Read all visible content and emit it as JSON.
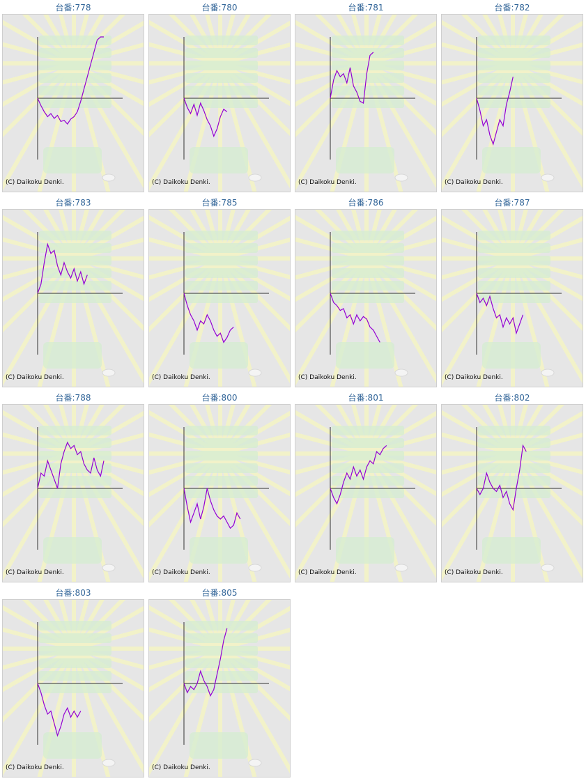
{
  "copyright": "(C) Daikoku Denki.",
  "colors": {
    "line": "#9400d3",
    "title": "#336699",
    "axis": "#333333",
    "panel_bg": "#e6e6e6"
  },
  "chart_data": [
    {
      "type": "line",
      "title": "台番:778",
      "xlim": [
        0,
        100
      ],
      "ylim": [
        -100,
        100
      ],
      "x": [
        0,
        5,
        10,
        15,
        20,
        25,
        30,
        35,
        40,
        45,
        50,
        55,
        60,
        65,
        70,
        75,
        80,
        85,
        90,
        95,
        100
      ],
      "values": [
        0,
        -12,
        -22,
        -30,
        -25,
        -33,
        -28,
        -38,
        -36,
        -42,
        -34,
        -30,
        -22,
        -5,
        15,
        35,
        55,
        75,
        95,
        100,
        100
      ]
    },
    {
      "type": "line",
      "title": "台番:780",
      "xlim": [
        0,
        100
      ],
      "ylim": [
        -100,
        100
      ],
      "x": [
        0,
        5,
        10,
        15,
        20,
        25,
        30,
        35,
        40,
        45,
        50,
        55,
        60,
        65,
        70,
        75,
        80,
        85,
        90,
        95,
        100
      ],
      "values": [
        0,
        -15,
        -25,
        -10,
        -28,
        -8,
        -20,
        -35,
        -45,
        -62,
        -50,
        -30,
        -18,
        -22,
        null,
        null,
        null,
        null,
        null,
        null,
        null
      ]
    },
    {
      "type": "line",
      "title": "台番:781",
      "xlim": [
        0,
        100
      ],
      "ylim": [
        -100,
        100
      ],
      "x": [
        0,
        5,
        10,
        15,
        20,
        25,
        30,
        35,
        40,
        45,
        50,
        55,
        60,
        65,
        70,
        75,
        80,
        85,
        90,
        95,
        100
      ],
      "values": [
        0,
        30,
        45,
        35,
        40,
        25,
        50,
        20,
        10,
        -5,
        -8,
        40,
        70,
        75,
        null,
        null,
        null,
        null,
        null,
        null,
        null
      ]
    },
    {
      "type": "line",
      "title": "台番:782",
      "xlim": [
        0,
        100
      ],
      "ylim": [
        -100,
        100
      ],
      "x": [
        0,
        5,
        10,
        15,
        20,
        25,
        30,
        35,
        40,
        45,
        50,
        55,
        60,
        65,
        70,
        75,
        80,
        85,
        90,
        95,
        100
      ],
      "values": [
        0,
        -20,
        -45,
        -35,
        -60,
        -75,
        -55,
        -35,
        -45,
        -10,
        10,
        35,
        null,
        null,
        null,
        null,
        null,
        null,
        null,
        null,
        null
      ]
    },
    {
      "type": "line",
      "title": "台番:783",
      "xlim": [
        0,
        100
      ],
      "ylim": [
        -100,
        100
      ],
      "x": [
        0,
        5,
        10,
        15,
        20,
        25,
        30,
        35,
        40,
        45,
        50,
        55,
        60,
        65,
        70,
        75,
        80,
        85,
        90,
        95,
        100
      ],
      "values": [
        0,
        15,
        50,
        80,
        65,
        70,
        45,
        30,
        50,
        35,
        25,
        40,
        20,
        35,
        15,
        30,
        null,
        null,
        null,
        null,
        null
      ]
    },
    {
      "type": "line",
      "title": "台番:785",
      "xlim": [
        0,
        100
      ],
      "ylim": [
        -100,
        100
      ],
      "x": [
        0,
        5,
        10,
        15,
        20,
        25,
        30,
        35,
        40,
        45,
        50,
        55,
        60,
        65,
        70,
        75,
        80,
        85,
        90,
        95,
        100
      ],
      "values": [
        0,
        -20,
        -35,
        -45,
        -60,
        -45,
        -50,
        -35,
        -45,
        -60,
        -70,
        -65,
        -80,
        -72,
        -60,
        -55,
        null,
        null,
        null,
        null,
        null
      ]
    },
    {
      "type": "line",
      "title": "台番:786",
      "xlim": [
        0,
        100
      ],
      "ylim": [
        -100,
        100
      ],
      "x": [
        0,
        5,
        10,
        15,
        20,
        25,
        30,
        35,
        40,
        45,
        50,
        55,
        60,
        65,
        70,
        75,
        80,
        85,
        90,
        95,
        100
      ],
      "values": [
        0,
        -15,
        -20,
        -28,
        -25,
        -40,
        -35,
        -50,
        -35,
        -45,
        -38,
        -42,
        -55,
        -60,
        -70,
        -80,
        null,
        null,
        null,
        null,
        null
      ]
    },
    {
      "type": "line",
      "title": "台番:787",
      "xlim": [
        0,
        100
      ],
      "ylim": [
        -100,
        100
      ],
      "x": [
        0,
        5,
        10,
        15,
        20,
        25,
        30,
        35,
        40,
        45,
        50,
        55,
        60,
        65,
        70,
        75,
        80,
        85,
        90,
        95,
        100
      ],
      "values": [
        0,
        -15,
        -8,
        -20,
        -5,
        -25,
        -40,
        -35,
        -55,
        -40,
        -50,
        -40,
        -65,
        -50,
        -35,
        null,
        null,
        null,
        null,
        null,
        null
      ]
    },
    {
      "type": "line",
      "title": "台番:788",
      "xlim": [
        0,
        100
      ],
      "ylim": [
        -100,
        100
      ],
      "x": [
        0,
        5,
        10,
        15,
        20,
        25,
        30,
        35,
        40,
        45,
        50,
        55,
        60,
        65,
        70,
        75,
        80,
        85,
        90,
        95,
        100
      ],
      "values": [
        0,
        25,
        20,
        45,
        30,
        15,
        0,
        40,
        60,
        75,
        65,
        70,
        55,
        60,
        40,
        30,
        25,
        50,
        30,
        20,
        45
      ]
    },
    {
      "type": "line",
      "title": "台番:800",
      "xlim": [
        0,
        100
      ],
      "ylim": [
        -100,
        100
      ],
      "x": [
        0,
        5,
        10,
        15,
        20,
        25,
        30,
        35,
        40,
        45,
        50,
        55,
        60,
        65,
        70,
        75,
        80,
        85,
        90,
        95,
        100
      ],
      "values": [
        0,
        -30,
        -55,
        -40,
        -25,
        -50,
        -30,
        0,
        -20,
        -35,
        -45,
        -50,
        -45,
        -55,
        -65,
        -60,
        -40,
        -50,
        null,
        null,
        null
      ]
    },
    {
      "type": "line",
      "title": "台番:801",
      "xlim": [
        0,
        100
      ],
      "ylim": [
        -100,
        100
      ],
      "x": [
        0,
        5,
        10,
        15,
        20,
        25,
        30,
        35,
        40,
        45,
        50,
        55,
        60,
        65,
        70,
        75,
        80,
        85,
        90,
        95,
        100
      ],
      "values": [
        0,
        -15,
        -25,
        -10,
        10,
        25,
        15,
        35,
        20,
        30,
        15,
        35,
        45,
        40,
        60,
        55,
        65,
        70,
        null,
        null,
        null
      ]
    },
    {
      "type": "line",
      "title": "台番:802",
      "xlim": [
        0,
        100
      ],
      "ylim": [
        -100,
        100
      ],
      "x": [
        0,
        5,
        10,
        15,
        20,
        25,
        30,
        35,
        40,
        45,
        50,
        55,
        60,
        65,
        70,
        75,
        80,
        85,
        90,
        95,
        100
      ],
      "values": [
        0,
        -10,
        0,
        25,
        10,
        0,
        -5,
        5,
        -15,
        -5,
        -25,
        -35,
        0,
        30,
        70,
        60,
        null,
        null,
        null,
        null,
        null
      ]
    },
    {
      "type": "line",
      "title": "台番:803",
      "xlim": [
        0,
        100
      ],
      "ylim": [
        -100,
        100
      ],
      "x": [
        0,
        5,
        10,
        15,
        20,
        25,
        30,
        35,
        40,
        45,
        50,
        55,
        60,
        65,
        70,
        75,
        80,
        85,
        90,
        95,
        100
      ],
      "values": [
        0,
        -15,
        -35,
        -50,
        -45,
        -65,
        -85,
        -70,
        -50,
        -40,
        -55,
        -45,
        -55,
        -45,
        null,
        null,
        null,
        null,
        null,
        null,
        null
      ]
    },
    {
      "type": "line",
      "title": "台番:805",
      "xlim": [
        0,
        100
      ],
      "ylim": [
        -100,
        100
      ],
      "x": [
        0,
        5,
        10,
        15,
        20,
        25,
        30,
        35,
        40,
        45,
        50,
        55,
        60,
        65,
        70,
        75,
        80,
        85,
        90,
        95,
        100
      ],
      "values": [
        0,
        -15,
        -5,
        -10,
        0,
        20,
        5,
        -5,
        -20,
        -10,
        15,
        40,
        70,
        90,
        null,
        null,
        null,
        null,
        null,
        null,
        null
      ]
    }
  ]
}
